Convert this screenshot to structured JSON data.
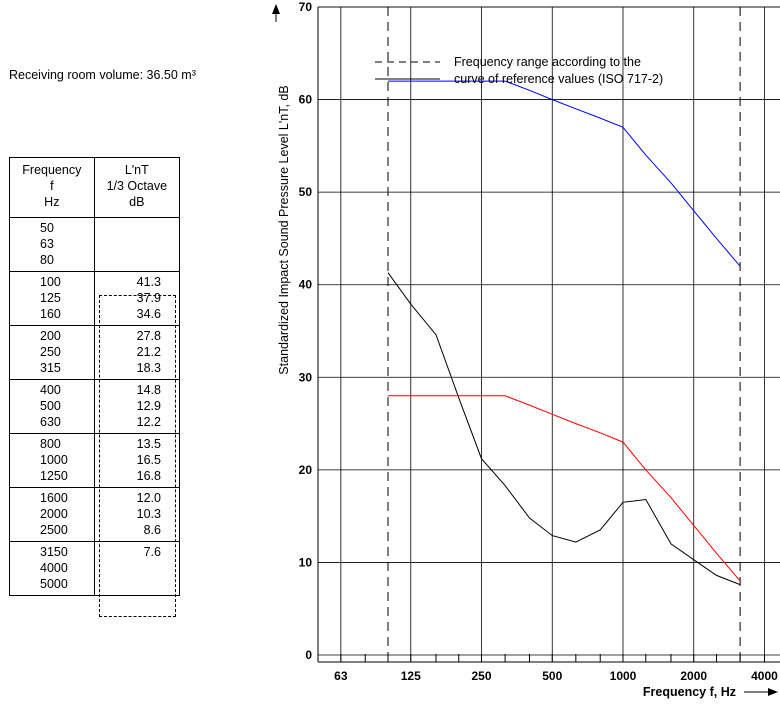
{
  "room_volume_label": "Receiving room volume: 36.50 m³",
  "table": {
    "header_frequency": [
      "Frequency",
      "f",
      "Hz"
    ],
    "header_value": [
      "L'nT",
      "1/3 Octave",
      "dB"
    ],
    "groups": [
      {
        "freqs": [
          "50",
          "63",
          "80"
        ],
        "values": [
          "",
          "",
          ""
        ]
      },
      {
        "freqs": [
          "100",
          "125",
          "160"
        ],
        "values": [
          "41.3",
          "37.9",
          "34.6"
        ]
      },
      {
        "freqs": [
          "200",
          "250",
          "315"
        ],
        "values": [
          "27.8",
          "21.2",
          "18.3"
        ]
      },
      {
        "freqs": [
          "400",
          "500",
          "630"
        ],
        "values": [
          "14.8",
          "12.9",
          "12.2"
        ]
      },
      {
        "freqs": [
          "800",
          "1000",
          "1250"
        ],
        "values": [
          "13.5",
          "16.5",
          "16.8"
        ]
      },
      {
        "freqs": [
          "1600",
          "2000",
          "2500"
        ],
        "values": [
          "12.0",
          "10.3",
          "8.6"
        ]
      },
      {
        "freqs": [
          "3150",
          "4000",
          "5000"
        ],
        "values": [
          "7.6",
          "",
          ""
        ]
      }
    ]
  },
  "chart_data": {
    "type": "line",
    "ylabel": "Standardized Impact Sound Pressure Level L'nT, dB",
    "xlabel": "Frequency f, Hz",
    "x_scale": "log",
    "ylim": [
      0,
      70
    ],
    "yticks": [
      0,
      10,
      20,
      30,
      40,
      50,
      60,
      70
    ],
    "xtick_labels": [
      {
        "f": 63,
        "label": "63"
      },
      {
        "f": 125,
        "label": "125"
      },
      {
        "f": 250,
        "label": "250"
      },
      {
        "f": 500,
        "label": "500"
      },
      {
        "f": 1000,
        "label": "1000"
      },
      {
        "f": 2000,
        "label": "2000"
      },
      {
        "f": 4000,
        "label": "4000"
      }
    ],
    "grid": true,
    "legend": {
      "text_line1": "Frequency range according to the",
      "text_line2": "curve of reference values (ISO 717-2)"
    },
    "frequency_range": [
      100,
      3150
    ],
    "series": [
      {
        "color": "#000000",
        "x": [
          100,
          125,
          160,
          200,
          250,
          315,
          400,
          500,
          630,
          800,
          1000,
          1250,
          1600,
          2000,
          2500,
          3150
        ],
        "y": [
          41.3,
          37.9,
          34.6,
          27.8,
          21.2,
          18.3,
          14.8,
          12.9,
          12.2,
          13.5,
          16.5,
          16.8,
          12.0,
          10.3,
          8.6,
          7.6
        ]
      },
      {
        "color": "#0000ff",
        "x": [
          100,
          125,
          160,
          200,
          250,
          315,
          400,
          500,
          630,
          800,
          1000,
          1250,
          1600,
          2000,
          2500,
          3150
        ],
        "y": [
          62,
          62,
          62,
          62,
          62,
          62,
          61,
          60,
          59,
          58,
          57,
          54,
          51,
          48,
          45,
          42
        ]
      },
      {
        "color": "#ff0000",
        "x": [
          100,
          125,
          160,
          200,
          250,
          315,
          400,
          500,
          630,
          800,
          1000,
          1250,
          1600,
          2000,
          2500,
          3150
        ],
        "y": [
          28,
          28,
          28,
          28,
          28,
          28,
          27,
          26,
          25,
          24,
          23,
          20,
          17,
          14,
          11,
          8
        ]
      }
    ]
  }
}
